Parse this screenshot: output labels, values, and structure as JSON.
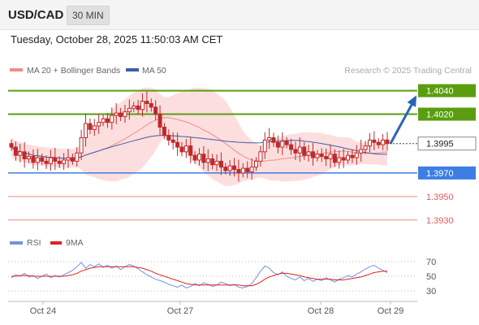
{
  "header": {
    "pair": "USD/CAD",
    "timeframe": "30 MIN"
  },
  "datetime": "Tuesday, October 28, 2025 11:50:03 AM CET",
  "legend": {
    "ma20": "MA 20 + Bollinger Bands",
    "ma50": "MA 50",
    "credit": "Research © 2025 Trading Central"
  },
  "colors": {
    "resistance": "#5a9e0f",
    "support": "#3d7ee3",
    "target": "#e05a5a",
    "arrow": "#2a64b4",
    "ma20": "#f28b8b",
    "ma50": "#3a5fa6",
    "band": "#fbd3d3",
    "candle": "#c0292b",
    "rsi": "#6f94e0",
    "rsi_ma": "#e02020"
  },
  "chart_data": {
    "type": "line",
    "title": "USD/CAD",
    "timeframe": "30 MIN",
    "ylim": [
      1.3925,
      1.4048
    ],
    "x_ticks": [
      "Oct 24",
      "Oct 27",
      "Oct 28",
      "Oct 29"
    ],
    "levels": [
      {
        "value": 1.404,
        "label": "1.4040",
        "type": "resistance",
        "style": "label"
      },
      {
        "value": 1.402,
        "label": "1.4020",
        "type": "resistance",
        "style": "label"
      },
      {
        "value": 1.3995,
        "label": "1.3995",
        "type": "current",
        "style": "current"
      },
      {
        "value": 1.397,
        "label": "1.3970",
        "type": "support",
        "style": "label"
      },
      {
        "value": 1.395,
        "label": "1.3950",
        "type": "target",
        "style": "text"
      },
      {
        "value": 1.393,
        "label": "1.3930",
        "type": "target",
        "style": "text"
      }
    ],
    "price_closes": [
      1.3992,
      1.3985,
      1.3988,
      1.3982,
      1.3984,
      1.3979,
      1.3983,
      1.398,
      1.3978,
      1.3983,
      1.398,
      1.3978,
      1.3981,
      1.3983,
      1.398,
      1.3987,
      1.4,
      1.4012,
      1.4007,
      1.401,
      1.4013,
      1.4016,
      1.4013,
      1.4019,
      1.4021,
      1.4018,
      1.4022,
      1.4025,
      1.4027,
      1.4024,
      1.4031,
      1.4029,
      1.4026,
      1.402,
      1.4009,
      1.4002,
      1.3998,
      1.3996,
      1.3992,
      1.3988,
      1.3993,
      1.3985,
      1.3981,
      1.3986,
      1.3979,
      1.3982,
      1.3977,
      1.398,
      1.3975,
      1.3972,
      1.3976,
      1.3973,
      1.397,
      1.3974,
      1.3971,
      1.3975,
      1.398,
      1.3988,
      1.3998,
      1.4,
      1.3996,
      1.3992,
      1.3997,
      1.3994,
      1.399,
      1.3987,
      1.3992,
      1.3985,
      1.3988,
      1.3983,
      1.3986,
      1.3984,
      1.3982,
      1.3986,
      1.3979,
      1.3983,
      1.3981,
      1.3985,
      1.3983,
      1.3987,
      1.399,
      1.3993,
      1.3998,
      1.3996,
      1.3994,
      1.3998,
      1.3995
    ],
    "forecast_arrow": {
      "from": 1.3995,
      "to": 1.4036
    },
    "series": [
      {
        "name": "MA 20 + Bollinger Bands",
        "role": "ma20"
      },
      {
        "name": "MA 50",
        "role": "ma50"
      }
    ],
    "rsi": {
      "ylim": [
        20,
        80
      ],
      "ticks": [
        70,
        50,
        30
      ],
      "legend": [
        "RSI",
        "9MA"
      ],
      "rsi_values": [
        48,
        52,
        50,
        54,
        49,
        51,
        47,
        50,
        53,
        48,
        51,
        49,
        52,
        55,
        58,
        63,
        69,
        61,
        66,
        63,
        67,
        62,
        65,
        61,
        64,
        59,
        63,
        66,
        64,
        60,
        56,
        52,
        49,
        46,
        44,
        42,
        39,
        37,
        35,
        38,
        34,
        36,
        40,
        37,
        41,
        39,
        36,
        38,
        42,
        40,
        37,
        39,
        35,
        34,
        36,
        40,
        48,
        57,
        64,
        61,
        55,
        52,
        56,
        50,
        47,
        45,
        49,
        44,
        47,
        43,
        46,
        44,
        48,
        45,
        42,
        46,
        48,
        51,
        49,
        53,
        56,
        60,
        63,
        65,
        61,
        58,
        55
      ],
      "ma_values": [
        50,
        50,
        51,
        51,
        51,
        50,
        50,
        50,
        50,
        50,
        50,
        50,
        50,
        51,
        52,
        54,
        57,
        59,
        61,
        62,
        63,
        63,
        63,
        63,
        63,
        63,
        63,
        63,
        63,
        62,
        61,
        59,
        57,
        54,
        52,
        50,
        48,
        46,
        44,
        42,
        40,
        39,
        38,
        38,
        38,
        38,
        38,
        38,
        38,
        38,
        38,
        38,
        38,
        37,
        37,
        37,
        39,
        42,
        46,
        49,
        51,
        53,
        54,
        54,
        53,
        52,
        51,
        49,
        48,
        47,
        46,
        46,
        46,
        46,
        45,
        45,
        45,
        46,
        47,
        48,
        49,
        51,
        53,
        55,
        56,
        57,
        57
      ]
    }
  }
}
